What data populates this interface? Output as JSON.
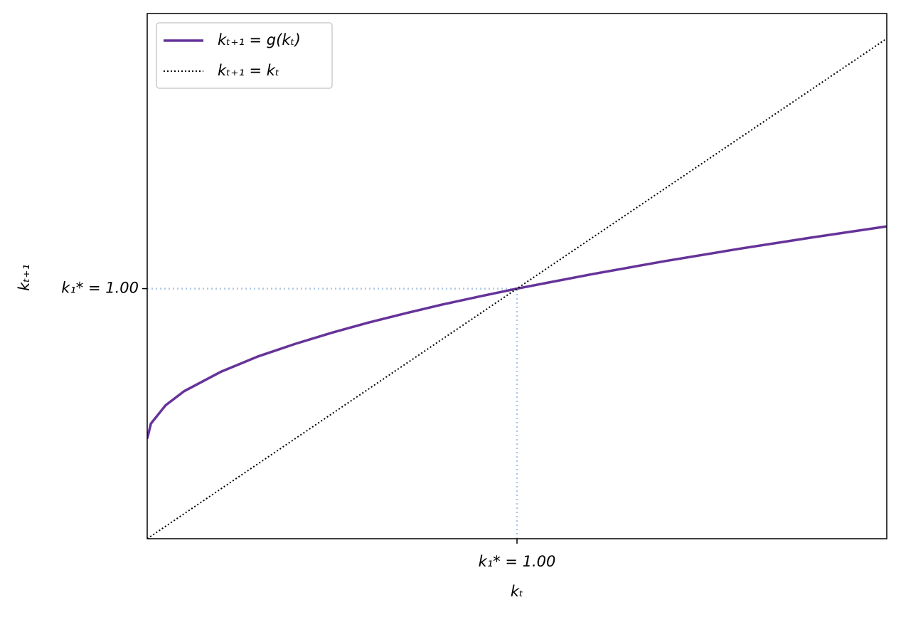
{
  "chart_data": {
    "type": "line",
    "xlabel": "kₜ",
    "ylabel": "kₜ₊₁",
    "xlim": [
      0,
      2.0
    ],
    "ylim": [
      0,
      2.1
    ],
    "xticks": [
      {
        "value": 1.0,
        "label": "k₁* = 1.00"
      }
    ],
    "yticks": [
      {
        "value": 1.0,
        "label": "k₁* = 1.00"
      }
    ],
    "guide_color": "#aec7e8",
    "legend": "upper left",
    "series": [
      {
        "name": "kₜ₊₁ = g(kₜ)",
        "color": "#663399",
        "style": "solid",
        "x": [
          0,
          0.01,
          0.05,
          0.1,
          0.2,
          0.3,
          0.4,
          0.5,
          0.6,
          0.7,
          0.8,
          0.9,
          1.0,
          1.2,
          1.4,
          1.6,
          1.8,
          2.0
        ],
        "values": [
          0.4,
          0.46,
          0.534,
          0.59,
          0.668,
          0.729,
          0.779,
          0.824,
          0.865,
          0.902,
          0.937,
          0.969,
          1.0,
          1.057,
          1.11,
          1.159,
          1.205,
          1.249
        ]
      },
      {
        "name": "kₜ₊₁ = kₜ",
        "color": "#000000",
        "style": "dotted",
        "x": [
          0,
          2.0
        ],
        "values": [
          0,
          2.0
        ]
      }
    ]
  }
}
